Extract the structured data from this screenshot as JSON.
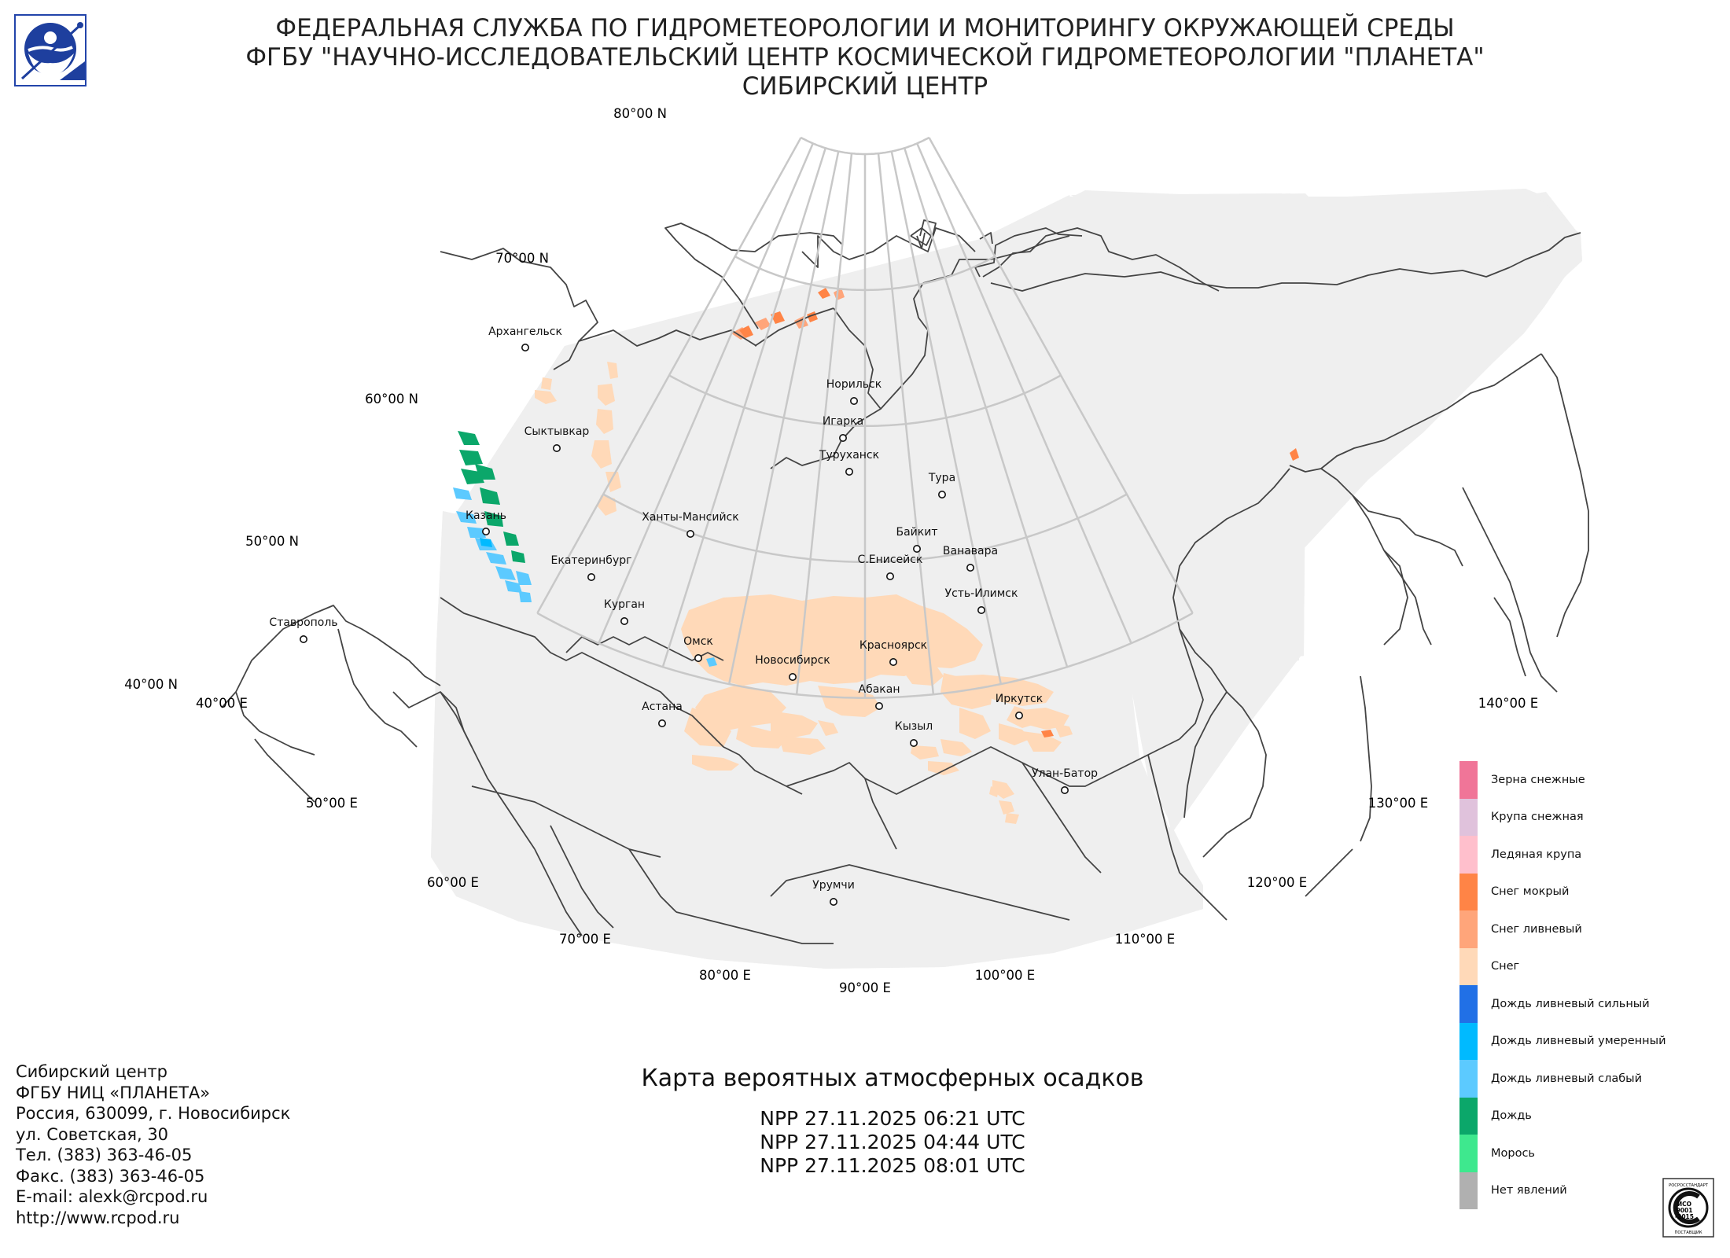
{
  "header": {
    "line1": "ФЕДЕРАЛЬНАЯ СЛУЖБА ПО ГИДРОМЕТЕОРОЛОГИИ И МОНИТОРИНГУ ОКРУЖАЮЩЕЙ СРЕДЫ",
    "line2": "ФГБУ \"НАУЧНО-ИССЛЕДОВАТЕЛЬСКИЙ ЦЕНТР КОСМИЧЕСКОЙ ГИДРОМЕТЕОРОЛОГИИ \"ПЛАНЕТА\"",
    "line3": "СИБИРСКИЙ ЦЕНТР"
  },
  "map": {
    "latitude_labels": [
      "80°00 N",
      "70°00 N",
      "60°00 N",
      "50°00 N",
      "40°00 N"
    ],
    "longitude_labels": [
      "40°00 E",
      "50°00 E",
      "60°00 E",
      "70°00 E",
      "80°00 E",
      "90°00 E",
      "100°00 E",
      "110°00 E",
      "120°00 E",
      "130°00 E",
      "140°00 E"
    ],
    "cities": [
      "Архангельск",
      "Сыктывкар",
      "Казань",
      "Ханты-Мансийск",
      "Екатеринбург",
      "Курган",
      "Ставрополь",
      "Омск",
      "Новосибирск",
      "Астана",
      "Норильск",
      "Игарка",
      "Туруханск",
      "Тура",
      "Байкит",
      "Ванавара",
      "С.Енисейск",
      "Усть-Илимск",
      "Красноярск",
      "Абакан",
      "Кызыл",
      "Иркутск",
      "Улан-Батор",
      "Урумчи"
    ]
  },
  "legend": {
    "items": [
      {
        "label": "Зерна снежные",
        "color": "#f07598"
      },
      {
        "label": "Крупа снежная",
        "color": "#e0c2dc"
      },
      {
        "label": "Ледяная крупа",
        "color": "#ffbfcc"
      },
      {
        "label": "Снег мокрый",
        "color": "#ff8446"
      },
      {
        "label": "Снег ливневый",
        "color": "#ffa57a"
      },
      {
        "label": "Снег",
        "color": "#ffd9b8"
      },
      {
        "label": "Дождь ливневый сильный",
        "color": "#2170e6"
      },
      {
        "label": "Дождь ливневый умеренный",
        "color": "#00baff"
      },
      {
        "label": "Дождь ливневый слабый",
        "color": "#5ccaff"
      },
      {
        "label": "Дождь",
        "color": "#0ba76a"
      },
      {
        "label": "Морось",
        "color": "#3ee88e"
      },
      {
        "label": "Нет явлений",
        "color": "#b0b0b0"
      }
    ]
  },
  "map_title": "Карта вероятных атмосферных осадков",
  "passes": [
    "NPP 27.11.2025  06:21 UTC",
    "NPP 27.11.2025  04:44 UTC",
    "NPP 27.11.2025  08:01 UTC"
  ],
  "contact": [
    "Сибирский центр",
    "ФГБУ НИЦ «ПЛАНЕТА»",
    "Россия, 630099, г. Новосибирск",
    "ул. Советская, 30",
    "Тел. (383) 363-46-05",
    "Факс. (383) 363-46-05",
    "E-mail: alexk@rcpod.ru",
    "http://www.rcpod.ru"
  ],
  "iso_badge": {
    "top_text": "РОСРОССТАНДАРТ",
    "mid_text": "ИСО 9001 -2015",
    "bottom_text": "ПОСТАВЩИК"
  }
}
